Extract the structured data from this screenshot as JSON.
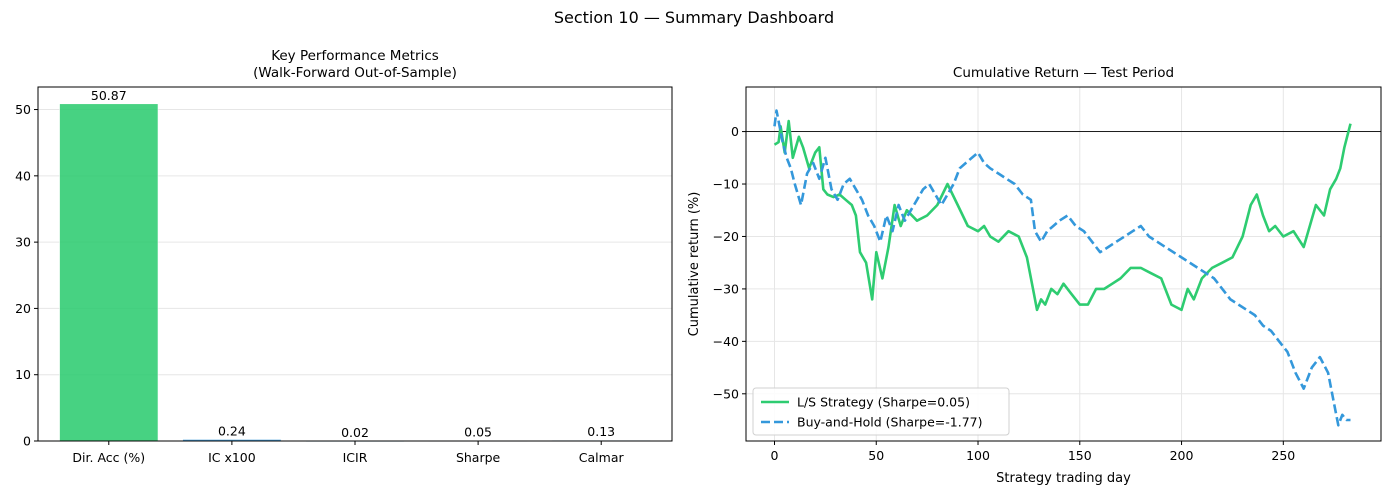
{
  "suptitle": "Section 10 — Summary Dashboard",
  "colors": {
    "green": "#2ecc71",
    "blue": "#3498db",
    "grid": "#e6e6e6",
    "axis": "#000000"
  },
  "chart_data": [
    {
      "type": "bar",
      "title": "Key Performance Metrics\n(Walk-Forward Out-of-Sample)",
      "categories": [
        "Dir. Acc (%)",
        "IC x100",
        "ICIR",
        "Sharpe",
        "Calmar"
      ],
      "values": [
        50.87,
        0.24,
        0.02,
        0.05,
        0.13
      ],
      "value_labels": [
        "50.87",
        "0.24",
        "0.02",
        "0.05",
        "0.13"
      ],
      "bar_colors": [
        "#2ecc71",
        "#3498db",
        "#3498db",
        "#3498db",
        "#3498db"
      ],
      "ylim": [
        0,
        53.4
      ],
      "yticks": [
        0,
        10,
        20,
        30,
        40,
        50
      ],
      "grid": "y",
      "xlabel": "",
      "ylabel": ""
    },
    {
      "type": "line",
      "title": "Cumulative Return — Test Period",
      "xlabel": "Strategy trading day",
      "ylabel": "Cumulative return (%)",
      "xlim": [
        -14,
        298
      ],
      "ylim": [
        -59,
        8.5
      ],
      "xticks": [
        0,
        50,
        100,
        150,
        200,
        250
      ],
      "yticks": [
        0,
        -10,
        -20,
        -30,
        -40,
        -50
      ],
      "grid": "both",
      "zero_line": true,
      "legend_position": "lower-left",
      "series": [
        {
          "name": "L/S Strategy (Sharpe=0.05)",
          "style": "solid",
          "color": "#2ecc71",
          "x": [
            0,
            2,
            3,
            5,
            7,
            9,
            12,
            14,
            17,
            20,
            22,
            24,
            26,
            29,
            32,
            35,
            38,
            40,
            42,
            45,
            48,
            50,
            53,
            56,
            59,
            62,
            65,
            70,
            75,
            80,
            85,
            90,
            95,
            100,
            103,
            106,
            110,
            115,
            120,
            124,
            127,
            129,
            131,
            133,
            136,
            139,
            142,
            146,
            150,
            154,
            158,
            162,
            166,
            170,
            175,
            180,
            185,
            190,
            195,
            200,
            203,
            206,
            210,
            215,
            220,
            225,
            230,
            234,
            237,
            240,
            243,
            246,
            250,
            255,
            260,
            263,
            266,
            270,
            273,
            276,
            278,
            280,
            283
          ],
          "y": [
            -2.5,
            -2,
            1,
            -4,
            2,
            -5,
            -1,
            -3,
            -7,
            -4,
            -3,
            -11,
            -12,
            -12.5,
            -12,
            -13,
            -14,
            -16,
            -23,
            -25,
            -32,
            -23,
            -28,
            -22,
            -14,
            -18,
            -15,
            -17,
            -16,
            -14,
            -10,
            -14,
            -18,
            -19,
            -18,
            -20,
            -21,
            -19,
            -20,
            -24,
            -30,
            -34,
            -32,
            -33,
            -30,
            -31,
            -29,
            -31,
            -33,
            -33,
            -30,
            -30,
            -29,
            -28,
            -26,
            -26,
            -27,
            -28,
            -33,
            -34,
            -30,
            -32,
            -28,
            -26,
            -25,
            -24,
            -20,
            -14,
            -12,
            -16,
            -19,
            -18,
            -20,
            -19,
            -22,
            -18,
            -14,
            -16,
            -11,
            -9,
            -7,
            -3,
            1.5
          ]
        },
        {
          "name": "Buy-and-Hold (Sharpe=-1.77)",
          "style": "dashed",
          "color": "#3498db",
          "x": [
            0,
            1,
            2,
            4,
            6,
            8,
            10,
            13,
            16,
            19,
            22,
            25,
            28,
            31,
            34,
            37,
            40,
            43,
            46,
            49,
            52,
            55,
            58,
            61,
            64,
            67,
            70,
            73,
            76,
            79,
            82,
            85,
            88,
            91,
            94,
            97,
            100,
            103,
            106,
            110,
            114,
            118,
            122,
            126,
            128,
            131,
            134,
            137,
            140,
            144,
            148,
            152,
            156,
            160,
            164,
            168,
            172,
            176,
            180,
            184,
            188,
            192,
            196,
            200,
            204,
            208,
            212,
            216,
            220,
            224,
            228,
            232,
            236,
            240,
            244,
            248,
            252,
            256,
            260,
            264,
            268,
            272,
            275,
            277,
            279,
            281,
            283
          ],
          "y": [
            1,
            4,
            2,
            -2,
            -5,
            -7,
            -10,
            -14,
            -8,
            -6,
            -9,
            -5,
            -11,
            -13,
            -10,
            -9,
            -11,
            -13,
            -16,
            -18,
            -21,
            -16,
            -19,
            -14,
            -17,
            -15,
            -13,
            -11,
            -10,
            -12,
            -14,
            -12,
            -10,
            -7,
            -6,
            -5,
            -4,
            -6,
            -7,
            -8,
            -9,
            -10,
            -12,
            -13,
            -19,
            -21,
            -19,
            -18,
            -17,
            -16,
            -18,
            -19,
            -21,
            -23,
            -22,
            -21,
            -20,
            -19,
            -18,
            -20,
            -21,
            -22,
            -23,
            -24,
            -25,
            -26,
            -27,
            -28,
            -30,
            -32,
            -33,
            -34,
            -35,
            -37,
            -38,
            -40,
            -42,
            -46,
            -49,
            -45,
            -43,
            -46,
            -52,
            -56,
            -54,
            -55,
            -55
          ]
        }
      ]
    }
  ]
}
